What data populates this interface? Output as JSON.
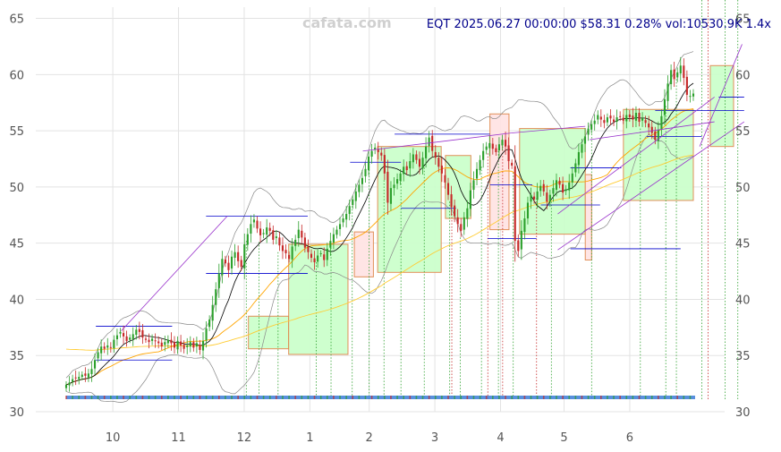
{
  "watermark": "cafata.com",
  "title": "EQT 2025.06.27 00:00:00 $58.31 0.28% vol:10530.9K 1.4x",
  "chart_data": {
    "type": "candlestick",
    "ylim": [
      30,
      66
    ],
    "y_ticks": [
      30,
      35,
      40,
      45,
      50,
      55,
      60,
      65
    ],
    "x_ticks": [
      "10",
      "11",
      "12",
      "1",
      "2",
      "3",
      "4",
      "5",
      "6"
    ],
    "x_tick_days": [
      22,
      53,
      84,
      115,
      143,
      174,
      205,
      235,
      266
    ],
    "x_range_days": [
      0,
      296
    ],
    "grid": true,
    "colors": {
      "up": "#2ca02c",
      "down": "#c62828",
      "box_up": "#ccffcc",
      "box_down": "#ffe4e4",
      "box_border": "#e08a50",
      "ma_fast": "#000000",
      "ma_mid": "#ffa500",
      "ma_slow": "#ffcc33",
      "band": "#888888",
      "trend": "#9932cc",
      "level": "#0000cd"
    },
    "close": [
      32.4,
      32.6,
      32.9,
      33.0,
      33.1,
      33.3,
      33.2,
      33.4,
      33.8,
      34.6,
      35.3,
      35.8,
      35.6,
      35.9,
      35.7,
      36.4,
      36.8,
      37.1,
      36.7,
      36.3,
      36.6,
      36.9,
      37.3,
      37.1,
      36.6,
      36.4,
      36.2,
      36.5,
      36.3,
      36.1,
      35.8,
      36.2,
      36.4,
      36.1,
      35.7,
      36.3,
      35.9,
      35.6,
      35.9,
      36.2,
      35.7,
      36.1,
      35.5,
      36.3,
      37.4,
      38.2,
      39.5,
      40.9,
      42.3,
      43.6,
      43.2,
      42.6,
      43.8,
      44.2,
      43.4,
      42.9,
      44.9,
      45.8,
      46.7,
      47.1,
      46.3,
      45.7,
      45.9,
      46.4,
      46.1,
      45.3,
      45.6,
      44.8,
      44.3,
      44.1,
      43.6,
      44.7,
      45.3,
      46.2,
      45.5,
      44.6,
      44.2,
      43.7,
      43.3,
      43.9,
      44.1,
      43.5,
      44.5,
      45.2,
      45.8,
      46.2,
      46.7,
      47.2,
      47.6,
      48.3,
      48.9,
      49.6,
      50.2,
      50.8,
      51.6,
      52.7,
      53.2,
      53.5,
      53.1,
      52.8,
      51.2,
      48.6,
      49.9,
      50.2,
      50.7,
      51.2,
      51.8,
      51.5,
      52.3,
      52.9,
      52.4,
      51.8,
      52.6,
      53.6,
      54.4,
      53.2,
      52.6,
      51.8,
      51.2,
      50.4,
      49.3,
      48.2,
      47.4,
      46.7,
      46.1,
      47.3,
      48.1,
      49.7,
      50.6,
      51.6,
      52.4,
      53.2,
      53.6,
      53.9,
      53.4,
      53.1,
      53.8,
      54.2,
      53.6,
      52.3,
      51.9,
      45.2,
      44.3,
      46.1,
      47.2,
      48.6,
      49.3,
      48.9,
      49.6,
      50.1,
      49.6,
      48.7,
      49.3,
      49.9,
      50.6,
      50.2,
      49.5,
      49.8,
      50.4,
      51.2,
      52.1,
      53.1,
      53.8,
      54.5,
      55.2,
      55.6,
      55.9,
      56.4,
      56.0,
      55.7,
      56.2,
      56.1,
      55.8,
      56.2,
      56.3,
      55.9,
      56.4,
      56.2,
      56.0,
      56.6,
      55.8,
      56.1,
      55.7,
      55.3,
      54.8,
      54.2,
      55.1,
      56.3,
      57.8,
      59.2,
      60.4,
      59.6,
      60.2,
      60.8,
      59.7,
      58.2,
      58.1,
      58.31
    ],
    "bands": [
      {
        "x0": 86,
        "x1": 105,
        "y0": 35.6,
        "y1": 38.5,
        "dir": "up"
      },
      {
        "x0": 105,
        "x1": 133,
        "y0": 35.1,
        "y1": 44.9,
        "dir": "up"
      },
      {
        "x0": 136,
        "x1": 145,
        "y0": 42.0,
        "y1": 46.0,
        "dir": "down"
      },
      {
        "x0": 147,
        "x1": 177,
        "y0": 42.4,
        "y1": 53.6,
        "dir": "up"
      },
      {
        "x0": 179,
        "x1": 191,
        "y0": 47.2,
        "y1": 52.8,
        "dir": "up"
      },
      {
        "x0": 200,
        "x1": 209,
        "y0": 46.2,
        "y1": 56.5,
        "dir": "down"
      },
      {
        "x0": 214,
        "x1": 245,
        "y0": 45.8,
        "y1": 55.2,
        "dir": "up"
      },
      {
        "x0": 245,
        "x1": 248,
        "y0": 43.5,
        "y1": 51.1,
        "dir": "down"
      },
      {
        "x0": 263,
        "x1": 296,
        "y0": 48.8,
        "y1": 56.9,
        "dir": "up"
      },
      {
        "x0": 304,
        "x1": 315,
        "y0": 53.6,
        "y1": 60.8,
        "dir": "up"
      }
    ],
    "levels": [
      {
        "x0": 14,
        "x1": 50,
        "y": 37.6
      },
      {
        "x0": 14,
        "x1": 50,
        "y": 34.6
      },
      {
        "x0": 66,
        "x1": 114,
        "y": 47.4
      },
      {
        "x0": 66,
        "x1": 114,
        "y": 42.3
      },
      {
        "x0": 134,
        "x1": 158,
        "y": 52.2
      },
      {
        "x0": 155,
        "x1": 200,
        "y": 54.7
      },
      {
        "x0": 158,
        "x1": 184,
        "y": 48.1
      },
      {
        "x0": 199,
        "x1": 222,
        "y": 45.4
      },
      {
        "x0": 200,
        "x1": 220,
        "y": 50.2
      },
      {
        "x0": 224,
        "x1": 252,
        "y": 48.4
      },
      {
        "x0": 238,
        "x1": 290,
        "y": 44.5
      },
      {
        "x0": 238,
        "x1": 262,
        "y": 51.7
      },
      {
        "x0": 274,
        "x1": 300,
        "y": 54.5
      },
      {
        "x0": 278,
        "x1": 320,
        "y": 56.8
      },
      {
        "x0": 308,
        "x1": 320,
        "y": 58.0
      }
    ],
    "trendlines": [
      {
        "x": [
          26,
          76
        ],
        "y": [
          37.2,
          47.4
        ]
      },
      {
        "x": [
          140,
          210
        ],
        "y": [
          53.2,
          54.8
        ]
      },
      {
        "x": [
          210,
          245
        ],
        "y": [
          54.8,
          55.4
        ]
      },
      {
        "x": [
          247,
          306
        ],
        "y": [
          54.2,
          55.8
        ]
      },
      {
        "x": [
          232,
          306
        ],
        "y": [
          47.6,
          58.0
        ]
      },
      {
        "x": [
          299,
          319
        ],
        "y": [
          53.6,
          62.7
        ]
      },
      {
        "x": [
          232,
          320
        ],
        "y": [
          44.4,
          55.8
        ]
      }
    ],
    "marker_lines": {
      "green": [
        85,
        91,
        100,
        118,
        125,
        135,
        143,
        150,
        158,
        169,
        181,
        186,
        196,
        204,
        211,
        229,
        248,
        271,
        283,
        288,
        300,
        311,
        317
      ],
      "red": [
        182,
        199,
        206,
        222,
        303
      ]
    }
  }
}
